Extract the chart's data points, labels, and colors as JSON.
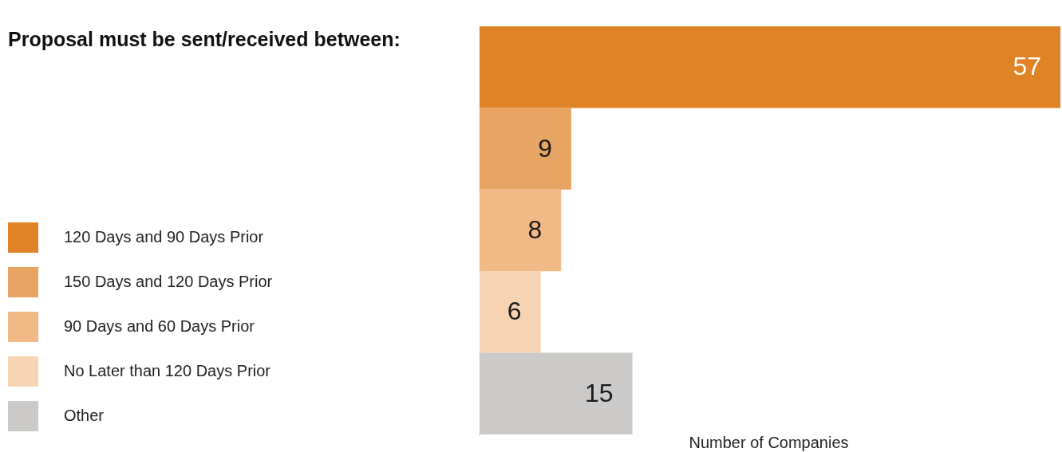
{
  "chart_data": {
    "type": "bar",
    "orientation": "horizontal",
    "stacked": true,
    "title": "Proposal must be sent/received between:",
    "xlabel": "Number of Companies",
    "categories": [
      null,
      null,
      null,
      null,
      null
    ],
    "series": [
      {
        "name": "120 Days and 90 Days Prior",
        "color": "#e08326",
        "values": [
          57,
          null,
          null,
          null,
          null
        ]
      },
      {
        "name": "150 Days and 120 Days Prior",
        "color": "#e8a462",
        "values": [
          null,
          9,
          null,
          null,
          null
        ]
      },
      {
        "name": "90 Days and 60 Days Prior",
        "color": "#f0b985",
        "values": [
          null,
          null,
          8,
          null,
          null
        ]
      },
      {
        "name": "No Later than 120 Days Prior",
        "color": "#f5d3b3",
        "values": [
          null,
          null,
          null,
          6,
          null
        ]
      },
      {
        "name": "Other",
        "color": "#cbcac8",
        "values": [
          null,
          null,
          null,
          null,
          15
        ]
      }
    ],
    "data_labels": true,
    "legend": "left",
    "grid": false
  }
}
